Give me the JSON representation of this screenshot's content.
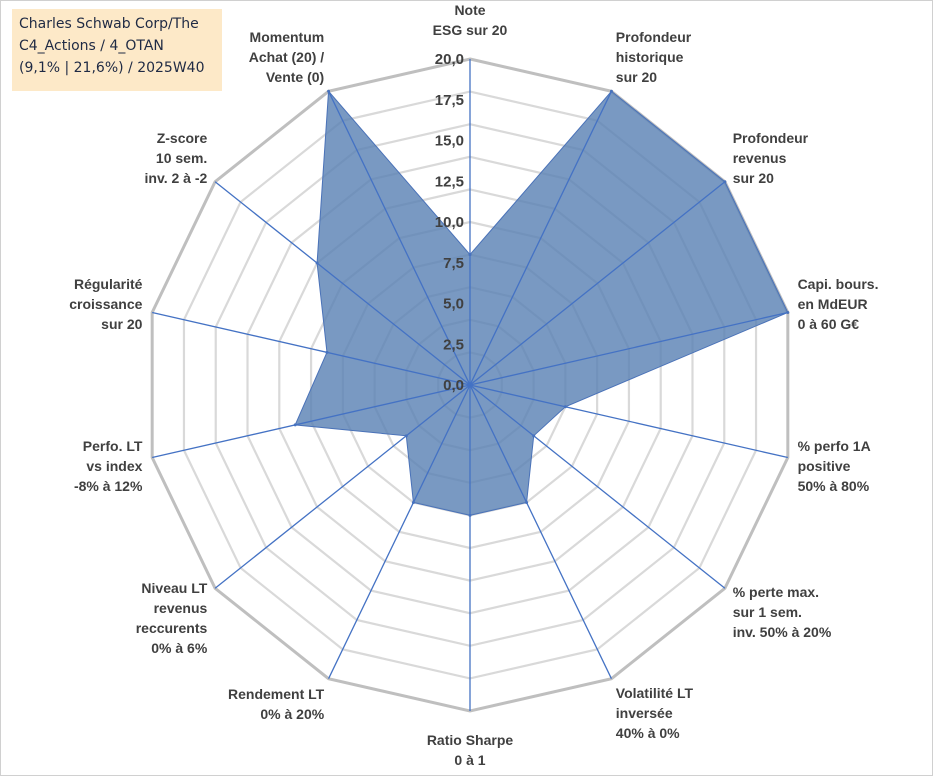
{
  "chart_data": {
    "type": "radar",
    "title_lines": [
      "Charles Schwab Corp/The",
      "C4_Actions / 4_OTAN",
      "(9,1% | 21,6%) / 2025W40"
    ],
    "rmin": 0,
    "rmax": 20,
    "ticks": [
      "0,0",
      "2,5",
      "5,0",
      "7,5",
      "10,0",
      "12,5",
      "15,0",
      "17,5",
      "20,0"
    ],
    "grid_rings": 10,
    "categories": [
      [
        "Note",
        "ESG sur 20"
      ],
      [
        "Profondeur",
        "historique",
        "sur 20"
      ],
      [
        "Profondeur",
        "revenus",
        "sur 20"
      ],
      [
        "Capi. bours.",
        "en MdEUR",
        "0 à 60 G€"
      ],
      [
        "% perfo 1A",
        "positive",
        "50% à 80%"
      ],
      [
        "% perte max.",
        "sur 1 sem.",
        "inv. 50% à 20%"
      ],
      [
        "Volatilité LT",
        "inversée",
        "40% à 0%"
      ],
      [
        "Ratio Sharpe",
        "0 à 1"
      ],
      [
        "Rendement LT",
        "0% à 20%"
      ],
      [
        "Niveau LT",
        "revenus",
        "reccurents",
        "0% à 6%"
      ],
      [
        "Perfo. LT",
        "vs index",
        "-8% à 12%"
      ],
      [
        "Régularité",
        "croissance",
        "sur 20"
      ],
      [
        "Z-score",
        "10 sem.",
        "inv. 2 à -2"
      ],
      [
        "Momentum",
        "Achat (20) /",
        "Vente (0)"
      ]
    ],
    "series": [
      {
        "name": "Charles Schwab Corp/The",
        "values": [
          8,
          20,
          20,
          20,
          6,
          5,
          8,
          8,
          8,
          5,
          11,
          9,
          12,
          20
        ]
      }
    ],
    "colors": {
      "fill": "#5b82b5",
      "fill_opacity": 0.82,
      "stroke": "#4a72b8",
      "spoke": "#4472c4",
      "grid_outer": "#bfbfbf",
      "grid_inner": "#d9d9d9",
      "text": "#404040",
      "title_bg": "#fde9c8"
    }
  }
}
